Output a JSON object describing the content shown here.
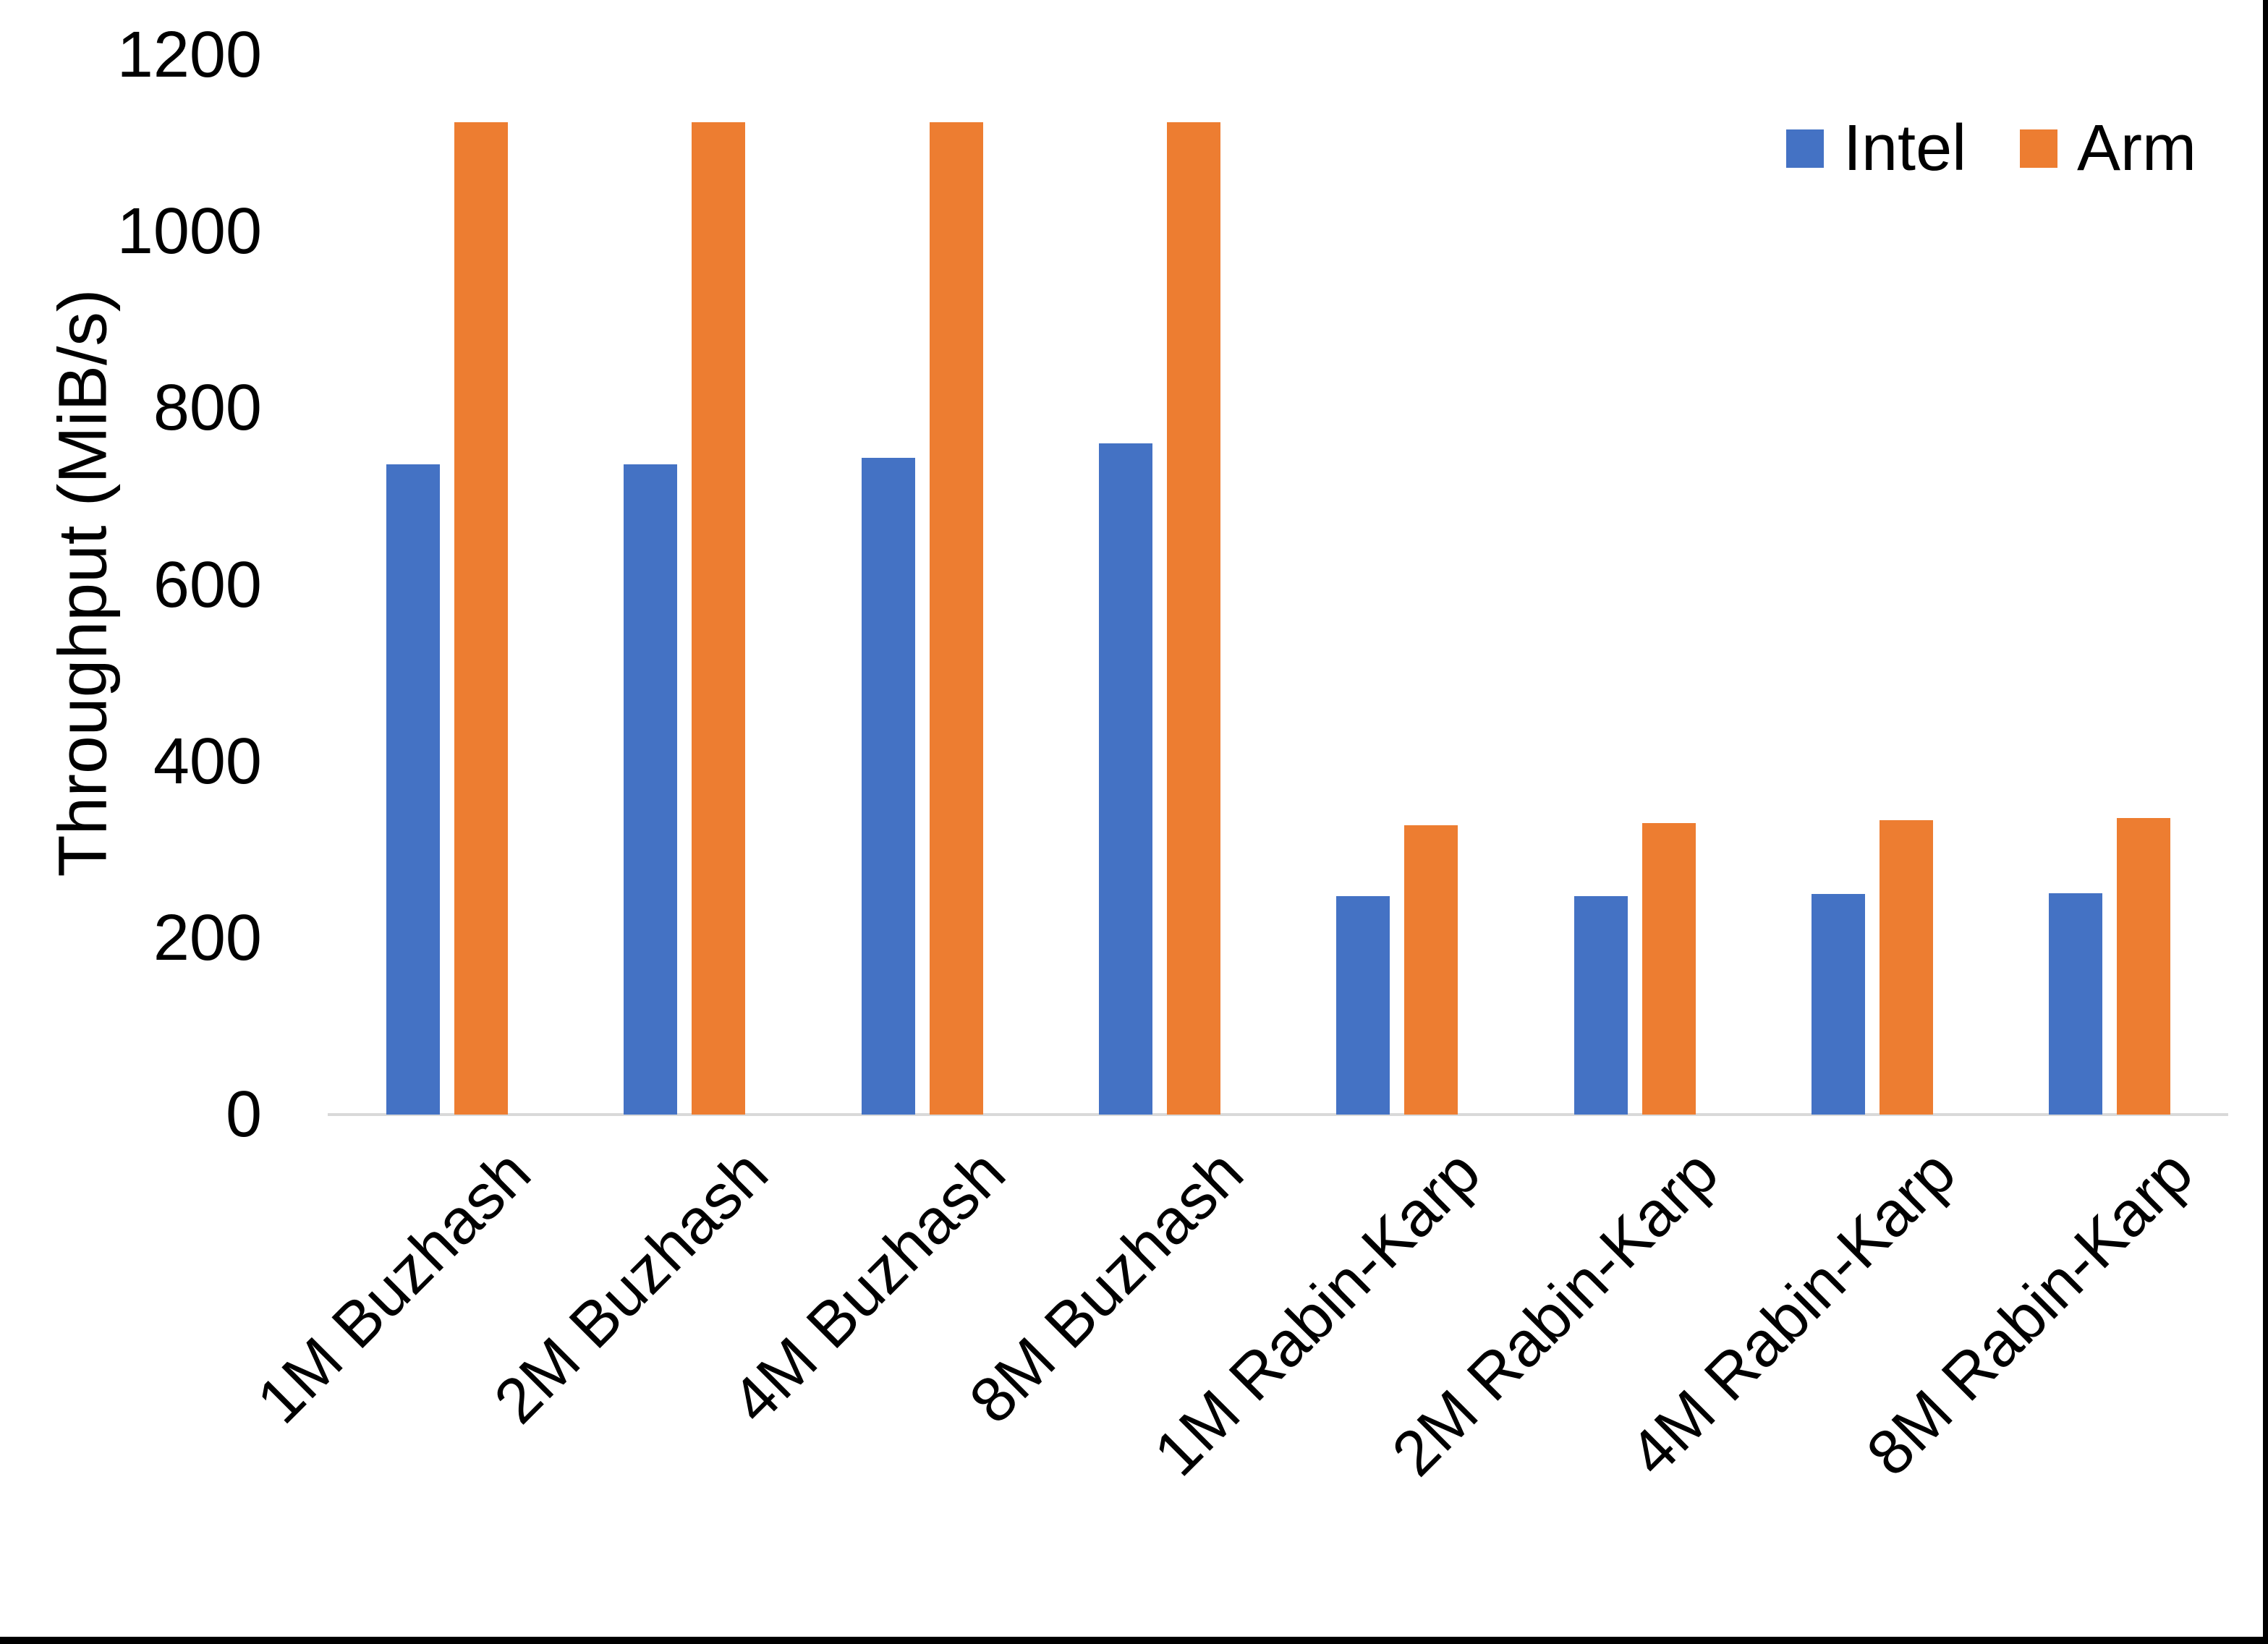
{
  "chart_data": {
    "type": "bar",
    "title": "",
    "xlabel": "",
    "ylabel": "Throughput (MiB/s)",
    "categories": [
      "1M Buzhash",
      "2M Buzhash",
      "4M Buzhash",
      "8M Buzhash",
      "1M Rabin-Karp",
      "2M Rabin-Karp",
      "4M Rabin-Karp",
      "8M Rabin-Karp"
    ],
    "series": [
      {
        "name": "Intel",
        "color": "#4472C4",
        "values": [
          736,
          736,
          744,
          760,
          247,
          247,
          250,
          251
        ]
      },
      {
        "name": "Arm",
        "color": "#ED7D31",
        "values": [
          1124,
          1124,
          1124,
          1124,
          328,
          330,
          333,
          336
        ]
      }
    ],
    "y_ticks": [
      0,
      200,
      400,
      600,
      800,
      1000,
      1200
    ],
    "ylim": [
      0,
      1200
    ],
    "grid": false,
    "legend_position": "top-right",
    "axis_line_color": "#D9D9D9"
  }
}
